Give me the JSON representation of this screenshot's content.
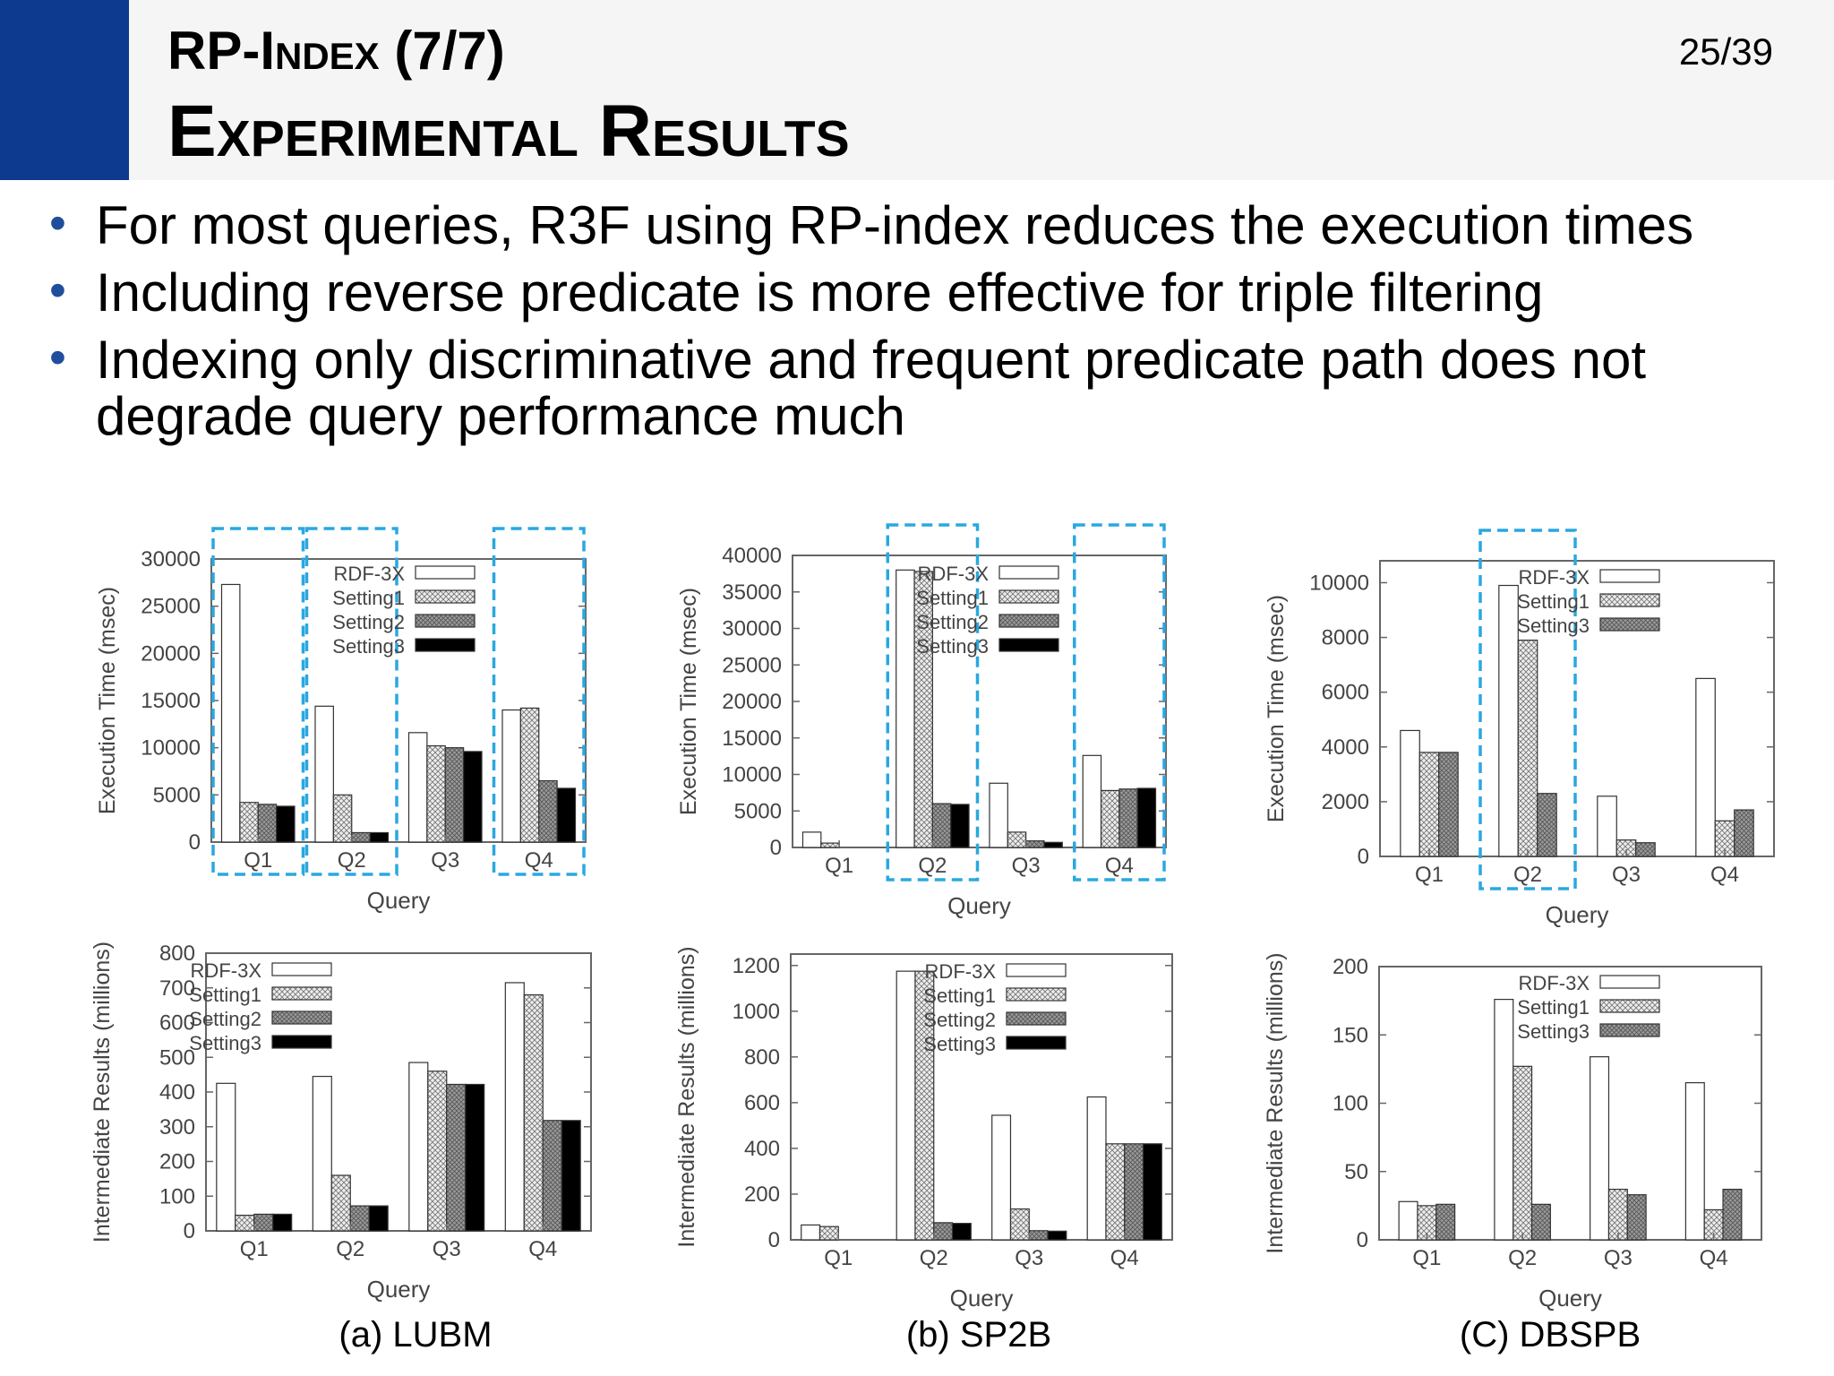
{
  "header": {
    "title_line1": "RP-Index (7/7)",
    "title_line2": "Experimental Results",
    "page": "25/39"
  },
  "bullets": [
    "For most queries, R3F using RP-index reduces the execution times",
    "Including reverse predicate is more effective for triple filtering",
    "Indexing only discriminative and frequent predicate path does not degrade query performance much"
  ],
  "captions": [
    "(a) LUBM",
    "(b) SP2B",
    "(C) DBSPB"
  ],
  "colors": {
    "accent": "#0d3a8f",
    "highlight": "#29a8e0"
  },
  "chart_data": [
    {
      "type": "bar",
      "categories": [
        "Q1",
        "Q2",
        "Q3",
        "Q4"
      ],
      "ylabel": "Execution Time (msec)",
      "xlabel": "Query",
      "ylim": [
        0,
        30000
      ],
      "yticks": [
        0,
        5000,
        10000,
        15000,
        20000,
        25000,
        30000
      ],
      "legend": "top-right",
      "highlighted": [
        "Q1",
        "Q2",
        "Q4"
      ],
      "series": [
        {
          "name": "RDF-3X",
          "values": [
            27300,
            14400,
            11600,
            14000
          ]
        },
        {
          "name": "Setting1",
          "values": [
            4200,
            5000,
            10200,
            14200
          ]
        },
        {
          "name": "Setting2",
          "values": [
            4000,
            1000,
            10000,
            6500
          ]
        },
        {
          "name": "Setting3",
          "values": [
            3800,
            1000,
            9600,
            5700
          ]
        }
      ]
    },
    {
      "type": "bar",
      "categories": [
        "Q1",
        "Q2",
        "Q3",
        "Q4"
      ],
      "ylabel": "Execution Time (msec)",
      "xlabel": "Query",
      "ylim": [
        0,
        40000
      ],
      "yticks": [
        0,
        5000,
        10000,
        15000,
        20000,
        25000,
        30000,
        35000,
        40000
      ],
      "legend": "top-right",
      "highlighted": [
        "Q2",
        "Q4"
      ],
      "series": [
        {
          "name": "RDF-3X",
          "values": [
            2100,
            38000,
            8800,
            12600
          ]
        },
        {
          "name": "Setting1",
          "values": [
            600,
            37800,
            2100,
            7800
          ]
        },
        {
          "name": "Setting2",
          "values": [
            0,
            6000,
            900,
            8000
          ]
        },
        {
          "name": "Setting3",
          "values": [
            0,
            5900,
            700,
            8100
          ]
        }
      ]
    },
    {
      "type": "bar",
      "categories": [
        "Q1",
        "Q2",
        "Q3",
        "Q4"
      ],
      "ylabel": "Execution Time (msec)",
      "xlabel": "Query",
      "ylim": [
        0,
        10800
      ],
      "yticks": [
        0,
        2000,
        4000,
        6000,
        8000,
        10000
      ],
      "legend": "top-right",
      "highlighted": [
        "Q2"
      ],
      "series": [
        {
          "name": "RDF-3X",
          "values": [
            4600,
            9900,
            2200,
            6500
          ]
        },
        {
          "name": "Setting1",
          "values": [
            3800,
            7900,
            600,
            1300
          ]
        },
        {
          "name": "Setting3",
          "values": [
            3800,
            2300,
            500,
            1700
          ]
        }
      ]
    },
    {
      "type": "bar",
      "categories": [
        "Q1",
        "Q2",
        "Q3",
        "Q4"
      ],
      "ylabel": "Intermediate Results (millions)",
      "xlabel": "Query",
      "ylim": [
        0,
        800
      ],
      "yticks": [
        0,
        100,
        200,
        300,
        400,
        500,
        600,
        700,
        800
      ],
      "legend": "top-left",
      "series": [
        {
          "name": "RDF-3X",
          "values": [
            425,
            445,
            485,
            715
          ]
        },
        {
          "name": "Setting1",
          "values": [
            45,
            160,
            460,
            680
          ]
        },
        {
          "name": "Setting2",
          "values": [
            48,
            72,
            422,
            318
          ]
        },
        {
          "name": "Setting3",
          "values": [
            48,
            72,
            422,
            318
          ]
        }
      ]
    },
    {
      "type": "bar",
      "categories": [
        "Q1",
        "Q2",
        "Q3",
        "Q4"
      ],
      "ylabel": "Intermediate Results (millions)",
      "xlabel": "Query",
      "ylim": [
        0,
        1250
      ],
      "yticks": [
        0,
        200,
        400,
        600,
        800,
        1000,
        1200
      ],
      "legend": "top-right",
      "series": [
        {
          "name": "RDF-3X",
          "values": [
            65,
            1175,
            545,
            625
          ]
        },
        {
          "name": "Setting1",
          "values": [
            58,
            1175,
            135,
            420
          ]
        },
        {
          "name": "Setting2",
          "values": [
            0,
            75,
            40,
            420
          ]
        },
        {
          "name": "Setting3",
          "values": [
            0,
            72,
            38,
            420
          ]
        }
      ]
    },
    {
      "type": "bar",
      "categories": [
        "Q1",
        "Q2",
        "Q3",
        "Q4"
      ],
      "ylabel": "Intermediate Results (millions)",
      "xlabel": "Query",
      "ylim": [
        0,
        200
      ],
      "yticks": [
        0,
        50,
        100,
        150,
        200
      ],
      "legend": "top-right",
      "series": [
        {
          "name": "RDF-3X",
          "values": [
            28,
            176,
            134,
            115
          ]
        },
        {
          "name": "Setting1",
          "values": [
            25,
            127,
            37,
            22
          ]
        },
        {
          "name": "Setting3",
          "values": [
            26,
            26,
            33,
            37
          ]
        }
      ]
    }
  ]
}
